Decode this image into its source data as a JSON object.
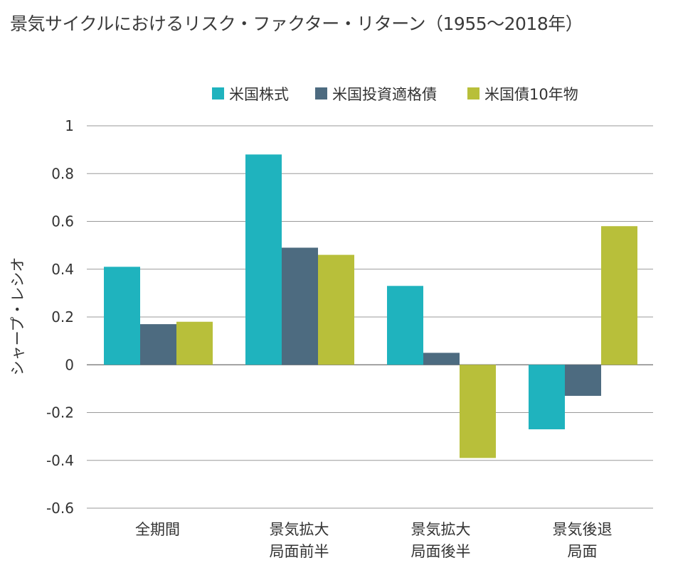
{
  "title": "景気サイクルにおけるリスク・ファクター・リターン（1955〜2018年）",
  "chart_data": {
    "type": "bar",
    "title": "景気サイクルにおけるリスク・ファクター・リターン（1955〜2018年）",
    "ylabel": "シャープ・レシオ",
    "xlabel": "",
    "ylim": [
      -0.6,
      1
    ],
    "yticks": [
      "1",
      "0.8",
      "0.6",
      "0.4",
      "0.2",
      "0",
      "-0.2",
      "-0.4",
      "-0.6"
    ],
    "grid": true,
    "legend_position": "top-right",
    "categories": [
      [
        "全期間"
      ],
      [
        "景気拡大",
        "局面前半"
      ],
      [
        "景気拡大",
        "局面後半"
      ],
      [
        "景気後退",
        "局面"
      ]
    ],
    "series": [
      {
        "name": "米国株式",
        "color": "#1fb3be",
        "values": [
          0.41,
          0.88,
          0.33,
          -0.27
        ]
      },
      {
        "name": "米国投資適格債",
        "color": "#4d6b80",
        "values": [
          0.17,
          0.49,
          0.05,
          -0.13
        ]
      },
      {
        "name": "米国債10年物",
        "color": "#b8bf3a",
        "values": [
          0.18,
          0.46,
          -0.39,
          0.58
        ]
      }
    ]
  }
}
